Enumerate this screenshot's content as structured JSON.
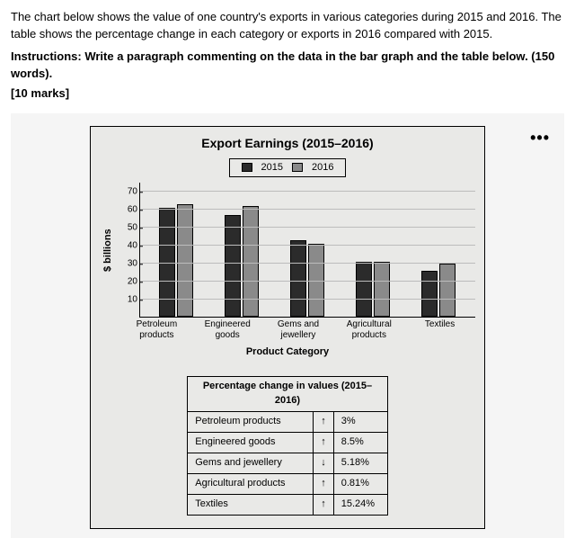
{
  "intro": "The chart below shows the value of one country's exports in various categories during 2015 and 2016. The table shows the percentage change in each category or exports in 2016 compared with 2015.",
  "instructions": "Instructions: Write a paragraph commenting on the data in the bar graph and the table below. (150 words).",
  "marks": "[10 marks]",
  "more_icon": "•••",
  "chart": {
    "type": "bar",
    "title": "Export Earnings (2015–2016)",
    "ylabel": "$ billions",
    "xlabel": "Product Category",
    "legend": {
      "a": "2015",
      "b": "2016"
    },
    "colors": {
      "a": "#2b2b2b",
      "b": "#8a8a8a",
      "grid": "#bcbcbc",
      "axis": "#000000",
      "bg": "#e9e9e7"
    },
    "ylim": [
      0,
      75
    ],
    "yticks": [
      10,
      20,
      30,
      40,
      50,
      60,
      70
    ],
    "categories": [
      {
        "label": "Petroleum products",
        "a": 61,
        "b": 63
      },
      {
        "label": "Engineered goods",
        "a": 57,
        "b": 62
      },
      {
        "label": "Gems and jewellery",
        "a": 43,
        "b": 41
      },
      {
        "label": "Agricultural products",
        "a": 31,
        "b": 31
      },
      {
        "label": "Textiles",
        "a": 26,
        "b": 30
      }
    ]
  },
  "table": {
    "title": "Percentage change in values (2015–2016)",
    "rows": [
      {
        "label": "Petroleum products",
        "dir": "up",
        "value": "3%"
      },
      {
        "label": "Engineered goods",
        "dir": "up",
        "value": "8.5%"
      },
      {
        "label": "Gems and jewellery",
        "dir": "down",
        "value": "5.18%"
      },
      {
        "label": "Agricultural products",
        "dir": "up",
        "value": "0.81%"
      },
      {
        "label": "Textiles",
        "dir": "up",
        "value": "15.24%"
      }
    ]
  }
}
